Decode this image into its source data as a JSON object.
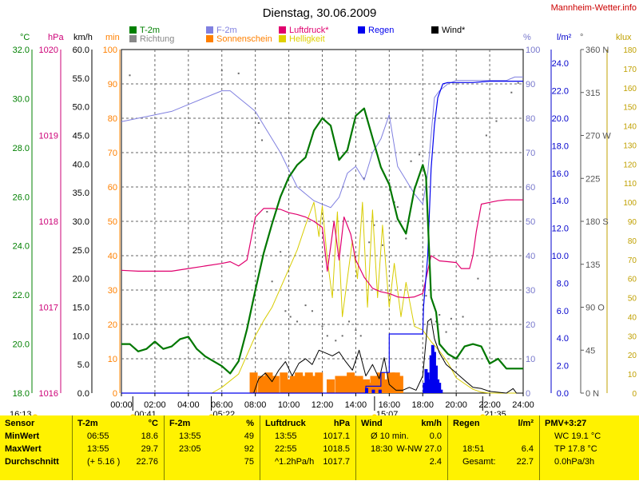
{
  "brand": "Mannheim-Wetter.info",
  "chart_data": {
    "type": "line",
    "title": "Dienstag, 30.06.2009",
    "x_unit": "hours",
    "xlim": [
      0,
      24
    ],
    "x_ticks": [
      "00:00",
      "02:00",
      "04:00",
      "06:00",
      "08:00",
      "10:00",
      "12:00",
      "14:00",
      "16:00",
      "18:00",
      "20:00",
      "22:00",
      "24:00"
    ],
    "axes": {
      "temp_C": {
        "label": "°C",
        "range": [
          18.0,
          32.0
        ],
        "ticks": [
          "32.0",
          "30.0",
          "28.0",
          "26.0",
          "24.0",
          "22.0",
          "20.0",
          "18.0"
        ],
        "color": "#008000"
      },
      "pressure_hPa": {
        "label": "hPa",
        "range": [
          1016,
          1020
        ],
        "ticks": [
          "1020",
          "1019",
          "1018",
          "1017",
          "1016"
        ],
        "color": "#cc0077"
      },
      "wind_kmh": {
        "label": "km/h",
        "range": [
          0,
          60
        ],
        "ticks": [
          "60.0",
          "55.0",
          "50.0",
          "45.0",
          "40.0",
          "35.0",
          "30.0",
          "25.0",
          "20.0",
          "15.0",
          "10.0",
          "5.0",
          "0.0"
        ],
        "color": "#000000"
      },
      "sunshine_min": {
        "label": "min",
        "range": [
          0,
          100
        ],
        "ticks": [
          "100",
          "90",
          "80",
          "70",
          "60",
          "50",
          "40",
          "30",
          "20",
          "10",
          "0"
        ],
        "color": "#ff8000"
      },
      "humidity_pct": {
        "label": "%",
        "range": [
          0,
          100
        ],
        "ticks": [
          "100",
          "90",
          "80",
          "70",
          "60",
          "50",
          "40",
          "30",
          "20",
          "10",
          "0"
        ],
        "color": "#7777cc"
      },
      "rain_l": {
        "label": "l/m²",
        "range": [
          0,
          25
        ],
        "ticks": [
          "24.0",
          "22.0",
          "20.0",
          "18.0",
          "16.0",
          "14.0",
          "12.0",
          "10.0",
          "8.0",
          "6.0",
          "4.0",
          "2.0",
          "0.0"
        ],
        "color": "#0000cc"
      },
      "direction_deg": {
        "label": "°",
        "range": [
          0,
          360
        ],
        "ticks": [
          "360 N",
          "315",
          "270 W",
          "225",
          "180 S",
          "135",
          "90 O",
          "45",
          "0 N"
        ],
        "color": "#555555"
      },
      "brightness_klux": {
        "label": "klux",
        "range": [
          0,
          180
        ],
        "ticks": [
          "180",
          "170",
          "160",
          "150",
          "140",
          "130",
          "120",
          "110",
          "100",
          "90",
          "80",
          "70",
          "60",
          "50",
          "40",
          "30",
          "20",
          "10",
          "0"
        ],
        "color": "#c0a000"
      }
    },
    "legend": [
      {
        "name": "T-2m",
        "color": "#008000"
      },
      {
        "name": "Richtung",
        "color": "#888888"
      },
      {
        "name": "F-2m",
        "color": "#8080e0"
      },
      {
        "name": "Sonnenschein",
        "color": "#ff8000"
      },
      {
        "name": "Luftdruck*",
        "color": "#e0006e"
      },
      {
        "name": "Helligkeit",
        "color": "#e0d000"
      },
      {
        "name": "Regen",
        "color": "#0000ee"
      },
      {
        "name": "Wind*",
        "color": "#000000"
      }
    ],
    "markers": {
      "sunrise": "05:22",
      "sunset": "21:35",
      "left_time": "16:13",
      "marks": [
        {
          "time": "00:41",
          "value": 0.68
        },
        {
          "time": "05:22",
          "value": 5.37
        },
        {
          "time": "15:07",
          "value": 15.12
        },
        {
          "time": "21:35",
          "value": 21.58
        }
      ]
    },
    "series": [
      {
        "name": "T-2m",
        "axis": "temp_C",
        "x": [
          0,
          0.5,
          1,
          1.5,
          2,
          2.5,
          3,
          3.5,
          4,
          4.5,
          5,
          5.5,
          6,
          6.5,
          7,
          7.5,
          8,
          8.5,
          9,
          9.5,
          10,
          10.5,
          11,
          11.5,
          12,
          12.5,
          13,
          13.5,
          14,
          14.5,
          15,
          15.5,
          16,
          16.5,
          17,
          17.5,
          18,
          18.2,
          18.5,
          18.8,
          19,
          19.5,
          20,
          20.5,
          21,
          21.5,
          22,
          22.5,
          23,
          23.5,
          24
        ],
        "y": [
          20.0,
          20.0,
          19.7,
          19.8,
          20.1,
          19.8,
          19.9,
          20.2,
          20.3,
          19.8,
          19.5,
          19.3,
          19.1,
          18.8,
          19.3,
          20.6,
          22.2,
          23.7,
          24.9,
          26.0,
          26.8,
          27.3,
          27.6,
          28.7,
          29.2,
          28.9,
          27.5,
          27.9,
          29.3,
          29.6,
          28.4,
          27.2,
          26.5,
          25.1,
          24.5,
          26.3,
          27.3,
          26.8,
          21.9,
          21.3,
          20.0,
          19.6,
          19.4,
          19.9,
          20.0,
          19.9,
          19.2,
          19.4,
          19.0,
          19.0,
          19.0
        ]
      },
      {
        "name": "F-2m",
        "axis": "humidity_pct",
        "x": [
          0,
          1,
          2,
          3,
          4,
          5,
          5.5,
          6,
          6.5,
          7,
          7.5,
          8,
          8.5,
          9,
          9.5,
          10,
          10.5,
          11,
          11.5,
          12,
          12.5,
          13,
          13.5,
          14,
          14.5,
          15,
          15.5,
          16,
          16.5,
          17,
          17.5,
          18,
          18.3,
          18.7,
          19,
          19.5,
          20,
          20.5,
          21,
          21.5,
          22,
          22.5,
          23,
          23.5,
          24
        ],
        "y": [
          79,
          80,
          81,
          82,
          84,
          86,
          87,
          88,
          88,
          86,
          84,
          82,
          78,
          74,
          70,
          65,
          60,
          58,
          56,
          55,
          54,
          57,
          64,
          66,
          62,
          70,
          74,
          81,
          66,
          62,
          58,
          55,
          64,
          86,
          88,
          90,
          91,
          91,
          91,
          91,
          91,
          91,
          91,
          92,
          92
        ]
      },
      {
        "name": "Luftdruck*",
        "axis": "pressure_hPa",
        "x": [
          0,
          1,
          2,
          3,
          4,
          5,
          6,
          6.5,
          7,
          7.5,
          8,
          8.5,
          9,
          9.5,
          10,
          10.5,
          11,
          11.5,
          12,
          12.3,
          12.7,
          13,
          13.3,
          13.7,
          14,
          14.5,
          15,
          15.5,
          16,
          16.5,
          17,
          17.5,
          18,
          18.5,
          19,
          19.5,
          20,
          20.3,
          20.8,
          21,
          21.2,
          21.5,
          22,
          22.5,
          23,
          24
        ],
        "y": [
          1017.43,
          1017.42,
          1017.42,
          1017.42,
          1017.45,
          1017.48,
          1017.51,
          1017.53,
          1017.48,
          1017.55,
          1018.05,
          1018.15,
          1018.15,
          1018.14,
          1018.1,
          1018.08,
          1018.05,
          1018.0,
          1017.93,
          1017.42,
          1018.0,
          1017.55,
          1018.05,
          1017.85,
          1017.55,
          1017.35,
          1017.22,
          1017.18,
          1017.16,
          1017.12,
          1017.11,
          1017.12,
          1017.16,
          1017.6,
          1017.54,
          1017.53,
          1017.52,
          1017.45,
          1017.45,
          1017.6,
          1017.88,
          1018.2,
          1018.22,
          1018.24,
          1018.25,
          1018.25
        ]
      },
      {
        "name": "Helligkeit",
        "axis": "brightness_klux",
        "x": [
          0,
          5.4,
          6,
          7,
          7.5,
          8,
          8.5,
          9,
          9.5,
          10,
          10.5,
          11,
          11.5,
          11.8,
          12,
          12.3,
          12.6,
          12.9,
          13.2,
          13.5,
          13.8,
          14.1,
          14.4,
          14.7,
          15,
          15.3,
          15.6,
          16,
          16.3,
          16.7,
          17,
          17.5,
          18,
          18.5,
          19,
          19.5,
          20,
          20.5,
          21,
          21.5,
          22,
          24
        ],
        "y": [
          0,
          0,
          3,
          10,
          20,
          30,
          38,
          45,
          55,
          65,
          75,
          88,
          100,
          82,
          98,
          70,
          50,
          95,
          40,
          60,
          80,
          60,
          100,
          45,
          96,
          50,
          88,
          45,
          68,
          40,
          58,
          35,
          33,
          27,
          22,
          16,
          8,
          5,
          2,
          0.5,
          0,
          0
        ]
      },
      {
        "name": "Wind*",
        "axis": "wind_kmh",
        "x": [
          0,
          7.9,
          8.2,
          8.6,
          9.0,
          9.4,
          9.8,
          10.2,
          10.6,
          11.0,
          11.4,
          11.8,
          12.2,
          12.6,
          13.0,
          13.4,
          13.8,
          14.2,
          14.6,
          15.0,
          15.4,
          15.7,
          16.0,
          16.4,
          16.8,
          17.2,
          17.6,
          18.0,
          18.3,
          18.5,
          18.7,
          19.0,
          19.4,
          19.8,
          20.2,
          20.6,
          21.0,
          21.5,
          22.0,
          23.0,
          23.4,
          23.6,
          24.0
        ],
        "y": [
          0,
          0,
          2.5,
          3.5,
          2.0,
          4.0,
          5.5,
          3.0,
          5.2,
          6.0,
          5.0,
          7.5,
          7.0,
          6.5,
          7.2,
          5.5,
          4.0,
          7.5,
          3.0,
          5.0,
          2.5,
          6.2,
          1.5,
          0.5,
          0.5,
          1.0,
          0.5,
          3.0,
          12.5,
          13.0,
          9.5,
          7.0,
          5.0,
          4.0,
          3.0,
          2.0,
          1.0,
          0.8,
          0.3,
          0,
          0.8,
          0,
          0
        ]
      },
      {
        "name": "Regen",
        "axis": "rain_l",
        "x": [
          0,
          14.6,
          14.6,
          15.5,
          15.5,
          16.0,
          16.0,
          18.0,
          18.05,
          18.3,
          18.5,
          18.7,
          18.9,
          19.2,
          19.5,
          20.0,
          21.0,
          22.0,
          24.0
        ],
        "y": [
          0,
          0,
          0.5,
          0.5,
          1.5,
          1.5,
          4.3,
          4.3,
          6.3,
          10.0,
          16.3,
          19.5,
          21.5,
          22.5,
          22.6,
          22.6,
          22.6,
          22.7,
          22.7
        ]
      }
    ],
    "sunshine_bars": {
      "name": "Sonnenschein",
      "axis": "sunshine_min",
      "x": [
        7.9,
        8.4,
        8.8,
        9.2,
        9.7,
        10.0,
        10.3,
        10.6,
        10.9,
        11.2,
        11.5,
        11.8,
        12.5,
        13.0,
        13.4,
        13.7,
        14.0,
        14.2,
        14.6,
        14.9,
        15.1,
        15.5,
        15.8,
        16.1,
        16.4,
        16.6
      ],
      "values": [
        6,
        5,
        6,
        5,
        6,
        4,
        5,
        6,
        5,
        6,
        5,
        6,
        4,
        5,
        5,
        6,
        5,
        5,
        4,
        3,
        5,
        6,
        4,
        6,
        6,
        5
      ]
    },
    "rain_bars": {
      "name": "Regen",
      "axis": "humidity_pct",
      "x": [
        14.65,
        15.05,
        15.45,
        18.1,
        18.2,
        18.3,
        18.4,
        18.5,
        18.6,
        18.7,
        18.8,
        18.9,
        19.0,
        19.1
      ],
      "values": [
        1.5,
        1,
        1,
        3,
        7,
        6,
        4,
        11,
        14,
        12,
        8,
        4,
        3,
        1
      ]
    },
    "direction_points": [
      [
        0.5,
        333
      ],
      [
        6.0,
        338
      ],
      [
        7.0,
        335
      ],
      [
        8.2,
        283
      ],
      [
        8.4,
        265
      ],
      [
        8.7,
        190
      ],
      [
        9.0,
        117
      ],
      [
        9.5,
        148
      ],
      [
        9.8,
        86
      ],
      [
        10.1,
        80
      ],
      [
        10.5,
        75
      ],
      [
        11.0,
        92
      ],
      [
        11.4,
        86
      ],
      [
        12.0,
        70
      ],
      [
        12.3,
        60
      ],
      [
        12.8,
        55
      ],
      [
        13.2,
        60
      ],
      [
        13.6,
        75
      ],
      [
        14.0,
        66
      ],
      [
        14.3,
        60
      ],
      [
        14.5,
        225
      ],
      [
        14.8,
        158
      ],
      [
        15.1,
        176
      ],
      [
        15.6,
        155
      ],
      [
        16.0,
        220
      ],
      [
        16.3,
        200
      ],
      [
        16.5,
        195
      ],
      [
        17.0,
        162
      ],
      [
        17.3,
        243
      ],
      [
        17.8,
        250
      ],
      [
        18.2,
        102
      ],
      [
        18.8,
        75
      ],
      [
        19.0,
        82
      ],
      [
        19.4,
        64
      ],
      [
        19.7,
        78
      ],
      [
        20.4,
        80
      ],
      [
        21.3,
        120
      ],
      [
        21.8,
        270
      ],
      [
        22.4,
        285
      ],
      [
        23.3,
        315
      ],
      [
        23.7,
        325
      ]
    ]
  },
  "table": {
    "columns": [
      {
        "header": "Sensor",
        "unit": "",
        "rows": [
          [
            "MinWert",
            ""
          ],
          [
            "MaxWert",
            ""
          ],
          [
            "Durchschnitt",
            ""
          ],
          [
            "",
            ""
          ]
        ]
      },
      {
        "header": "T-2m",
        "unit": "°C",
        "rows": [
          [
            "06:55",
            "18.6"
          ],
          [
            "13:55",
            "29.7"
          ],
          [
            "(+ 5.16 )",
            "22.76"
          ],
          [
            "",
            ""
          ]
        ]
      },
      {
        "header": "F-2m",
        "unit": "%",
        "rows": [
          [
            "13:55",
            "49"
          ],
          [
            "23:05",
            "92"
          ],
          [
            "",
            "75"
          ],
          [
            "",
            ""
          ]
        ]
      },
      {
        "header": "Luftdruck",
        "unit": "hPa",
        "rows": [
          [
            "13:55",
            "1017.1"
          ],
          [
            "22:55",
            "1018.5"
          ],
          [
            "^1.2hPa/h",
            "1017.7"
          ],
          [
            "",
            ""
          ]
        ]
      },
      {
        "header": "Wind",
        "unit": "km/h",
        "rows": [
          [
            "Ø 10 min.",
            "0.0"
          ],
          [
            "18:30",
            "W-NW 27.0"
          ],
          [
            "",
            "2.4"
          ],
          [
            "",
            ""
          ]
        ]
      },
      {
        "header": "Regen",
        "unit": "l/m²",
        "rows": [
          [
            "",
            ""
          ],
          [
            "18:51",
            "6.4"
          ],
          [
            "Gesamt:",
            "22.7"
          ],
          [
            "",
            ""
          ]
        ]
      },
      {
        "header": "PMV+3:27",
        "unit": "",
        "rows": [
          [
            "WC 19.1 °C",
            ""
          ],
          [
            "TP 17.8 °C",
            ""
          ],
          [
            "0.0hPa/3h",
            ""
          ],
          [
            "",
            ""
          ]
        ]
      }
    ]
  }
}
